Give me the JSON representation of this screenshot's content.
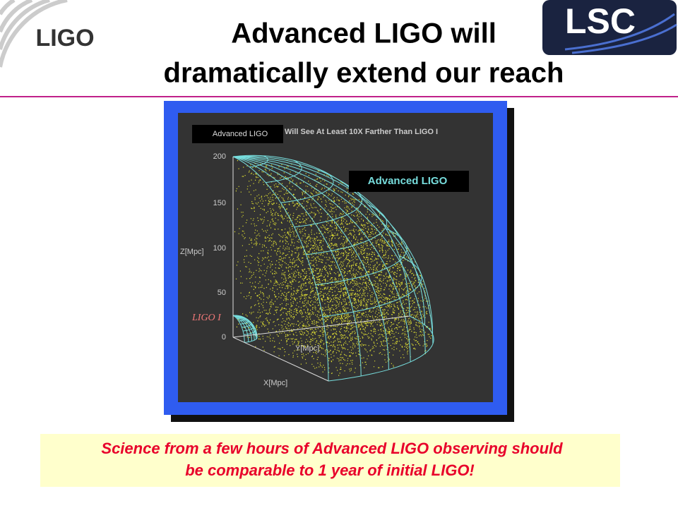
{
  "header": {
    "logo": "LIGO",
    "badge": "LSC",
    "title_lines": [
      "Advanced LIGO will",
      "dramatically extend our reach"
    ]
  },
  "figure": {
    "tag": "Advanced LIGO",
    "heading": "Will See At Least 10X Farther Than LIGO I",
    "label": "Advanced LIGO",
    "small_label": "LIGO I",
    "z_ticks": [
      "200",
      "150",
      "100",
      "50",
      "0"
    ],
    "z_axis": "Z[Mpc]",
    "y_axis": "Y[Mpc]",
    "x_axis": "X[Mpc]"
  },
  "caption": {
    "lines": [
      "Science from a few hours of Advanced LIGO observing should",
      "be comparable to 1 year of initial LIGO!"
    ]
  }
}
